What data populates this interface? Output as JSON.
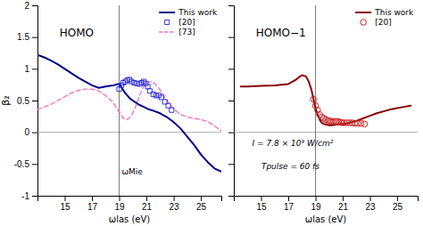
{
  "chart_data": [
    {
      "type": "line",
      "title": "HOMO",
      "xlabel": "ωlas (eV)",
      "ylabel": "β₂",
      "xlim": [
        13.0,
        26.5
      ],
      "xticks": [
        15,
        17,
        19,
        21,
        23,
        25
      ],
      "ylim": [
        -1.0,
        2.0
      ],
      "yticks": [
        -1.0,
        -0.5,
        0.0,
        0.5,
        1.0,
        1.5,
        2.0
      ],
      "vline_x": 19.0,
      "hline_y": 0,
      "annotations": [
        "ωMie"
      ],
      "legend": "upper right",
      "series": [
        {
          "name": "This work",
          "type": "line",
          "color": "#00008B",
          "x": [
            13.0,
            13.5,
            14.0,
            14.5,
            15.0,
            15.5,
            16.0,
            16.5,
            17.0,
            17.5,
            18.0,
            18.3,
            18.6,
            18.9,
            19.0,
            19.2,
            19.4,
            19.6,
            19.8,
            20.0,
            20.2,
            20.5,
            20.8,
            21.0,
            21.2,
            21.5,
            22.0,
            22.5,
            23.0,
            23.5,
            24.0,
            24.5,
            25.0,
            25.5,
            26.0,
            26.5
          ],
          "values": [
            1.22,
            1.18,
            1.13,
            1.07,
            1.0,
            0.93,
            0.86,
            0.8,
            0.74,
            0.7,
            0.72,
            0.73,
            0.74,
            0.76,
            0.76,
            0.7,
            0.63,
            0.58,
            0.53,
            0.5,
            0.47,
            0.43,
            0.4,
            0.38,
            0.36,
            0.34,
            0.3,
            0.24,
            0.16,
            0.06,
            -0.07,
            -0.2,
            -0.35,
            -0.47,
            -0.57,
            -0.62
          ]
        },
        {
          "name": "[20]",
          "type": "scatter",
          "marker": "square",
          "color": "#3333DD",
          "x": [
            19.0,
            19.15,
            19.3,
            19.45,
            19.6,
            19.75,
            19.9,
            20.1,
            20.3,
            20.5,
            20.65,
            20.8,
            20.95,
            21.1,
            21.25,
            21.5,
            21.7,
            21.9,
            22.1,
            22.35,
            22.6,
            22.85
          ],
          "values": [
            0.68,
            0.74,
            0.78,
            0.8,
            0.82,
            0.83,
            0.8,
            0.78,
            0.77,
            0.76,
            0.78,
            0.8,
            0.77,
            0.72,
            0.65,
            0.6,
            0.58,
            0.58,
            0.55,
            0.48,
            0.42,
            0.35
          ]
        },
        {
          "name": "[73]",
          "type": "line",
          "line_style": "dashed",
          "color": "#FF69B4",
          "x": [
            13.0,
            13.5,
            14.0,
            14.5,
            15.0,
            15.5,
            16.0,
            16.5,
            17.0,
            17.5,
            18.0,
            18.5,
            19.0,
            19.3,
            19.6,
            19.9,
            20.2,
            20.5,
            20.8,
            21.0,
            21.3,
            21.6,
            21.9,
            22.2,
            22.5,
            23.0,
            23.5,
            24.0,
            24.5,
            25.0,
            25.5,
            26.0,
            26.5
          ],
          "values": [
            0.36,
            0.4,
            0.44,
            0.5,
            0.56,
            0.62,
            0.66,
            0.68,
            0.68,
            0.65,
            0.58,
            0.48,
            0.32,
            0.22,
            0.2,
            0.26,
            0.4,
            0.58,
            0.72,
            0.78,
            0.8,
            0.77,
            0.7,
            0.6,
            0.5,
            0.37,
            0.28,
            0.24,
            0.22,
            0.2,
            0.17,
            0.1,
            0.02
          ]
        }
      ]
    },
    {
      "type": "line",
      "title": "HOMO−1",
      "xlabel": "ωlas (eV)",
      "tick_labels": "x",
      "xlim": [
        13.0,
        26.5
      ],
      "xticks": [
        15,
        17,
        19,
        21,
        23,
        25
      ],
      "ylim": [
        -1.0,
        2.0
      ],
      "yticks": [
        -1.0,
        -0.5,
        0.0,
        0.5,
        1.0,
        1.5,
        2.0
      ],
      "vline_x": 19.0,
      "hline_y": 0,
      "annotations": [
        "I = 7.8 × 10⁹ W/cm²",
        "Tpulse = 60 fs"
      ],
      "legend": "upper right",
      "series": [
        {
          "name": "This work",
          "type": "line",
          "color": "#8B0000",
          "x": [
            13.5,
            14.0,
            15.0,
            16.0,
            17.0,
            17.5,
            17.8,
            18.0,
            18.3,
            18.5,
            18.7,
            18.85,
            19.0,
            19.15,
            19.3,
            19.45,
            19.6,
            19.8,
            20.0,
            20.2,
            20.5,
            20.8,
            21.1,
            21.5,
            22.0,
            22.5,
            23.0,
            23.5,
            24.0,
            24.5,
            25.0,
            25.5,
            26.0
          ],
          "values": [
            0.72,
            0.72,
            0.73,
            0.74,
            0.76,
            0.82,
            0.87,
            0.9,
            0.88,
            0.8,
            0.67,
            0.52,
            0.38,
            0.28,
            0.2,
            0.15,
            0.13,
            0.12,
            0.11,
            0.11,
            0.12,
            0.13,
            0.13,
            0.15,
            0.18,
            0.22,
            0.26,
            0.3,
            0.33,
            0.36,
            0.38,
            0.4,
            0.42
          ]
        },
        {
          "name": "[20]",
          "type": "scatter",
          "marker": "circle",
          "color": "#CC2222",
          "x": [
            18.85,
            19.0,
            19.15,
            19.3,
            19.45,
            19.6,
            19.75,
            19.9,
            20.05,
            20.2,
            20.35,
            20.5,
            20.65,
            20.8,
            20.95,
            21.1,
            21.3,
            21.5,
            21.7,
            21.9,
            22.1,
            22.35,
            22.6
          ],
          "values": [
            0.52,
            0.42,
            0.35,
            0.28,
            0.24,
            0.22,
            0.2,
            0.18,
            0.18,
            0.17,
            0.17,
            0.17,
            0.17,
            0.16,
            0.15,
            0.15,
            0.15,
            0.15,
            0.15,
            0.14,
            0.14,
            0.14,
            0.13
          ]
        }
      ]
    }
  ]
}
